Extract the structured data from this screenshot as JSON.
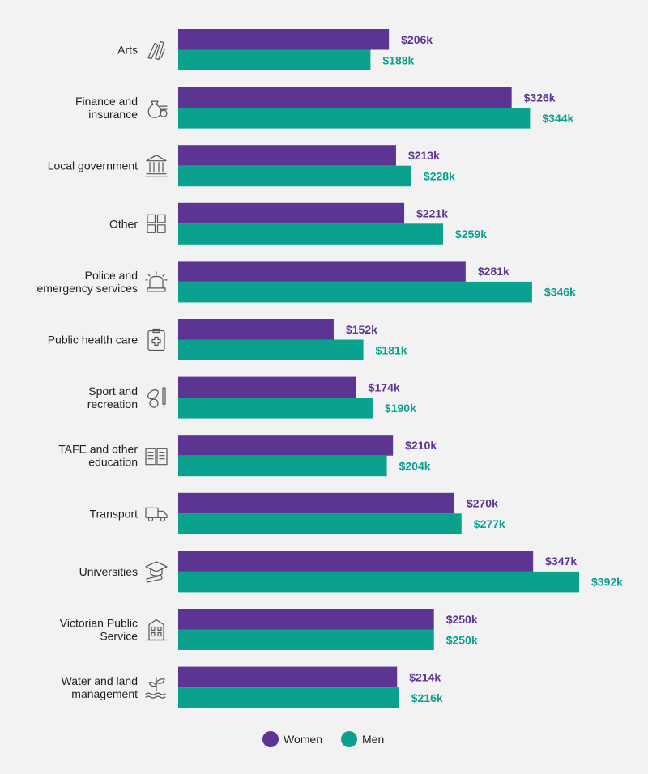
{
  "chart_data": {
    "type": "bar",
    "orientation": "horizontal",
    "categories": [
      {
        "label": [
          "Arts"
        ],
        "icon": "paintbrush-icon"
      },
      {
        "label": [
          "Finance and",
          "insurance"
        ],
        "icon": "money-bag-icon"
      },
      {
        "label": [
          "Local government"
        ],
        "icon": "government-building-icon"
      },
      {
        "label": [
          "Other"
        ],
        "icon": "grid-squares-icon"
      },
      {
        "label": [
          "Police and",
          "emergency services"
        ],
        "icon": "siren-icon"
      },
      {
        "label": [
          "Public health care"
        ],
        "icon": "medical-clipboard-icon"
      },
      {
        "label": [
          "Sport and",
          "recreation"
        ],
        "icon": "sports-equipment-icon"
      },
      {
        "label": [
          "TAFE and other",
          "education"
        ],
        "icon": "open-book-icon"
      },
      {
        "label": [
          "Transport"
        ],
        "icon": "truck-icon"
      },
      {
        "label": [
          "Universities"
        ],
        "icon": "graduation-cap-icon"
      },
      {
        "label": [
          "Victorian Public",
          "Service"
        ],
        "icon": "office-building-icon"
      },
      {
        "label": [
          "Water and land",
          "management"
        ],
        "icon": "plant-water-icon"
      }
    ],
    "series": [
      {
        "name": "Women",
        "color": "#5c3592",
        "values": [
          206,
          326,
          213,
          221,
          281,
          152,
          174,
          210,
          270,
          347,
          250,
          214
        ],
        "labels": [
          "$206k",
          "$326k",
          "$213k",
          "$221k",
          "$281k",
          "$152k",
          "$174k",
          "$210k",
          "$270k",
          "$347k",
          "$250k",
          "$214k"
        ]
      },
      {
        "name": "Men",
        "color": "#0aa18e",
        "values": [
          188,
          344,
          228,
          259,
          346,
          181,
          190,
          204,
          277,
          392,
          250,
          216
        ],
        "labels": [
          "$188k",
          "$344k",
          "$228k",
          "$259k",
          "$346k",
          "$181k",
          "$190k",
          "$204k",
          "$277k",
          "$392k",
          "$250k",
          "$216k"
        ]
      }
    ],
    "xlim": [
      0,
      400
    ],
    "grid": false,
    "legend_position": "bottom-center"
  }
}
